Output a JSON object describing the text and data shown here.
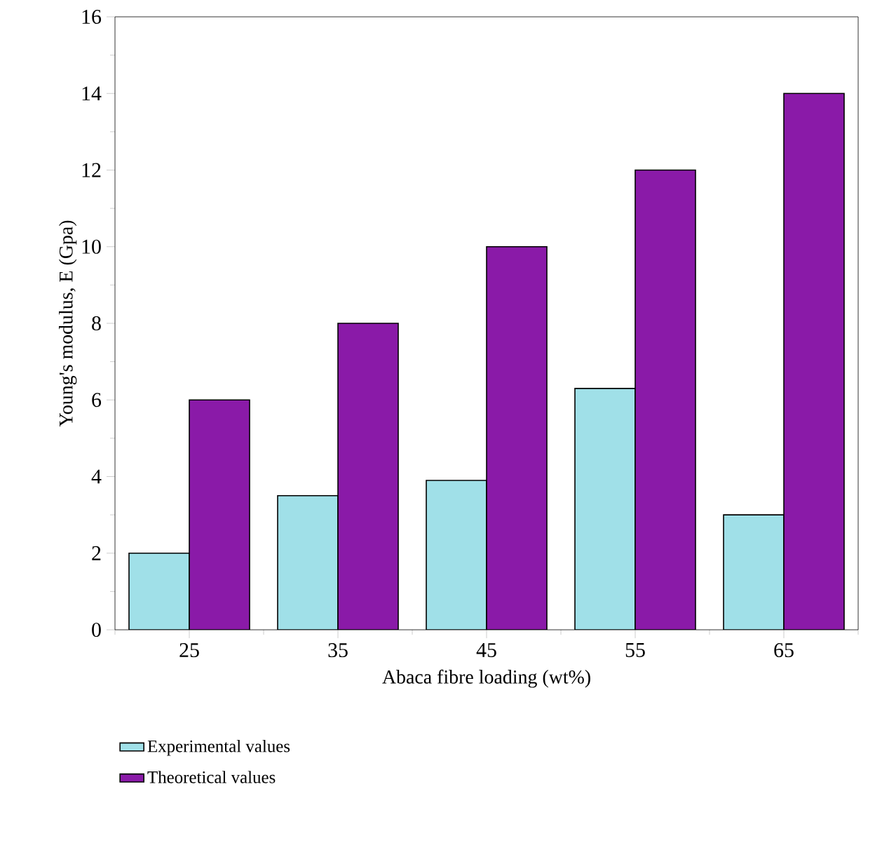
{
  "chart_data": {
    "type": "bar",
    "xlabel": "Abaca fibre loading (wt%)",
    "ylabel": "Young's modulus, E (Gpa)",
    "categories": [
      "25",
      "35",
      "45",
      "55",
      "65"
    ],
    "series": [
      {
        "name": "Experimental values",
        "color": "#a0e0e8",
        "values": [
          2,
          3.5,
          3.9,
          6.3,
          3
        ]
      },
      {
        "name": "Theoretical values",
        "color": "#8a1aa8",
        "values": [
          6,
          8,
          10,
          12,
          14
        ]
      }
    ],
    "ylim": [
      0,
      16
    ],
    "yticks": [
      0,
      2,
      4,
      6,
      8,
      10,
      12,
      14,
      16
    ],
    "grid": false,
    "legend": "bottom left"
  }
}
